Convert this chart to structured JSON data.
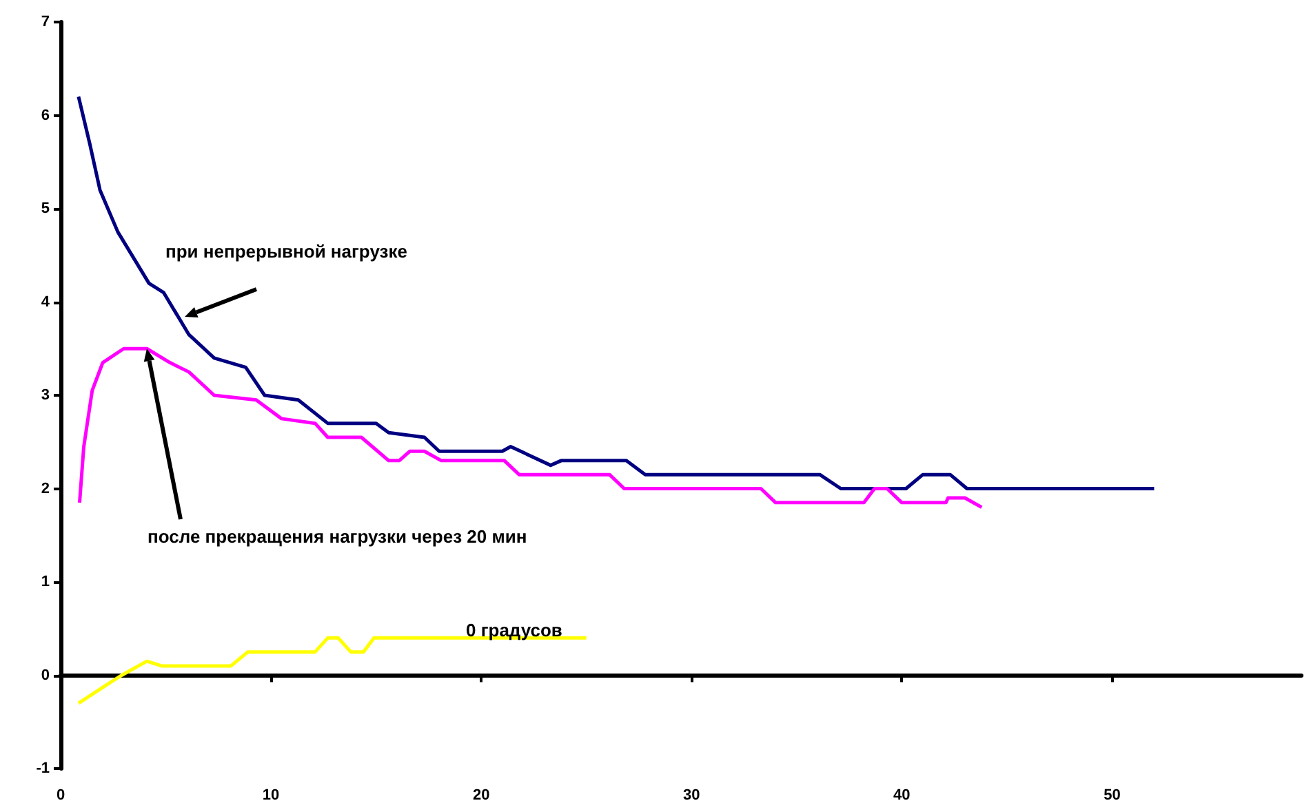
{
  "chart_data": {
    "type": "line",
    "xlim": [
      0,
      59
    ],
    "xticks": [
      0,
      10,
      20,
      30,
      40,
      50
    ],
    "ylim": [
      -1,
      7
    ],
    "yticks": [
      -1,
      0,
      1,
      2,
      3,
      4,
      5,
      6,
      7
    ],
    "series": [
      {
        "color": "#000080",
        "x": [
          0.85,
          1.38,
          1.87,
          2.72,
          4.2,
          4.9,
          6.1,
          7.3,
          8.8,
          9.7,
          11.3,
          12.7,
          15.0,
          15.6,
          17.3,
          18.0,
          21.0,
          21.4,
          23.3,
          23.8,
          26.9,
          27.8,
          36.1,
          37.1,
          40.2,
          41.0,
          42.3,
          43.1,
          52.0
        ],
        "values": [
          6.2,
          5.7,
          5.2,
          4.75,
          4.2,
          4.1,
          3.65,
          3.4,
          3.3,
          3.0,
          2.95,
          2.7,
          2.7,
          2.6,
          2.55,
          2.4,
          2.4,
          2.45,
          2.25,
          2.3,
          2.3,
          2.15,
          2.15,
          2.0,
          2.0,
          2.15,
          2.15,
          2.0,
          2.0
        ]
      },
      {
        "color": "#ff00ff",
        "x": [
          0.9,
          1.1,
          1.5,
          2.0,
          3.0,
          4.1,
          5.2,
          6.1,
          7.3,
          9.3,
          10.5,
          12.1,
          12.7,
          14.3,
          15.6,
          16.1,
          16.6,
          17.3,
          18.1,
          18.5,
          21.1,
          21.8,
          26.1,
          26.8,
          33.3,
          34.0,
          38.2,
          38.7,
          39.3,
          40.0,
          42.1,
          42.2,
          43.0,
          43.8
        ],
        "values": [
          1.85,
          2.45,
          3.05,
          3.35,
          3.5,
          3.5,
          3.35,
          3.25,
          3.0,
          2.95,
          2.75,
          2.7,
          2.55,
          2.55,
          2.3,
          2.3,
          2.4,
          2.4,
          2.3,
          2.3,
          2.3,
          2.15,
          2.15,
          2.0,
          2.0,
          1.85,
          1.85,
          2.0,
          2.0,
          1.85,
          1.85,
          1.9,
          1.9,
          1.8
        ]
      },
      {
        "color": "#ffff00",
        "x": [
          0.85,
          2.2,
          2.9,
          4.1,
          4.8,
          8.1,
          8.9,
          12.1,
          12.7,
          13.2,
          13.8,
          14.4,
          14.9,
          25.0
        ],
        "values": [
          -0.3,
          -0.1,
          0.0,
          0.15,
          0.1,
          0.1,
          0.25,
          0.25,
          0.4,
          0.4,
          0.25,
          0.25,
          0.4,
          0.4
        ]
      }
    ],
    "annotations": [
      "при непрерывной нагрузке",
      {
        "text": "после прекращения нагрузки через 20 мин",
        "x": 4.1,
        "y": 3.5
      },
      "0 градусов"
    ]
  }
}
